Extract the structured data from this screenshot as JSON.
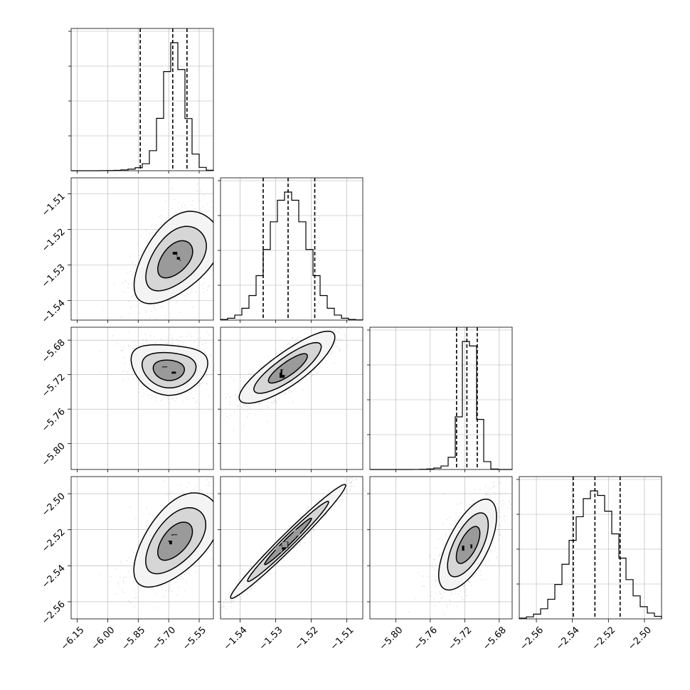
{
  "chart_data": {
    "type": "corner",
    "parameters": 4,
    "grid": true,
    "title": "",
    "axis_ranges": [
      [
        -6.18,
        -5.48
      ],
      [
        -1.5455,
        -1.5055
      ],
      [
        -5.83,
        -5.665
      ],
      [
        -2.5695,
        -2.4905
      ]
    ],
    "ticks": [
      {
        "values": [
          -6.15,
          -6.0,
          -5.85,
          -5.7,
          -5.55
        ],
        "labels": [
          "−6.15",
          "−6.00",
          "−5.85",
          "−5.70",
          "−5.55"
        ]
      },
      {
        "values": [
          -1.54,
          -1.53,
          -1.52,
          -1.51
        ],
        "labels": [
          "−1.54",
          "−1.53",
          "−1.52",
          "−1.51"
        ]
      },
      {
        "values": [
          -5.8,
          -5.76,
          -5.72,
          -5.68
        ],
        "labels": [
          "−5.80",
          "−5.76",
          "−5.72",
          "−5.68"
        ]
      },
      {
        "values": [
          -2.56,
          -2.54,
          -2.52,
          -2.5
        ],
        "labels": [
          "−2.56",
          "−2.54",
          "−2.52",
          "−2.50"
        ]
      }
    ],
    "marginals": [
      {
        "mean": -5.665,
        "sd": 0.052,
        "skew": -0.12,
        "quantiles": [
          -5.84,
          -5.68,
          -5.61
        ]
      },
      {
        "mean": -1.5265,
        "sd": 0.0055,
        "skew": 0.0,
        "quantiles": [
          -1.5335,
          -1.5265,
          -1.519
        ]
      },
      {
        "mean": -5.714,
        "sd": 0.0085,
        "skew": -0.02,
        "quantiles": [
          -5.7295,
          -5.7175,
          -5.7055
        ]
      },
      {
        "mean": -2.5275,
        "sd": 0.0125,
        "skew": 0.0,
        "quantiles": [
          -2.5395,
          -2.5275,
          -2.5135
        ]
      }
    ],
    "pairs": [
      {
        "row": 1,
        "col": 0,
        "center": [
          -5.67,
          -1.5285
        ],
        "rot": -0.72,
        "half_axes": [
          0.165,
          0.28
        ],
        "bend": 0.7
      },
      {
        "row": 2,
        "col": 0,
        "center": [
          -5.7,
          -5.715
        ],
        "rot": -0.08,
        "half_axes": [
          0.2,
          0.13
        ],
        "bend": 1.1
      },
      {
        "row": 2,
        "col": 1,
        "center": [
          -1.5265,
          -5.713
        ],
        "rot": 0.62,
        "half_axes": [
          0.3,
          0.085
        ],
        "bend": 0.35
      },
      {
        "row": 3,
        "col": 0,
        "center": [
          -5.67,
          -2.5265
        ],
        "rot": -0.7,
        "half_axes": [
          0.155,
          0.29
        ],
        "bend": 0.55
      },
      {
        "row": 3,
        "col": 1,
        "center": [
          -1.5265,
          -2.5265
        ],
        "rot": 0.78,
        "half_axes": [
          0.42,
          0.04
        ],
        "bend": 0.0
      },
      {
        "row": 3,
        "col": 2,
        "center": [
          -5.716,
          -2.5285
        ],
        "rot": 1.1,
        "half_axes": [
          0.26,
          0.105
        ],
        "bend": 0.15
      }
    ]
  }
}
